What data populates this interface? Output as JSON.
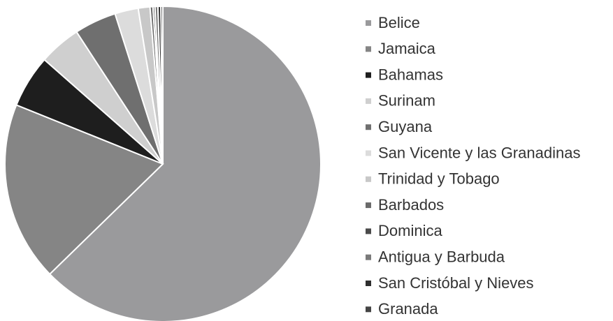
{
  "chart_data": {
    "type": "pie",
    "categories": [
      "Belice",
      "Jamaica",
      "Bahamas",
      "Surinam",
      "Guyana",
      "San Vicente y las Granadinas",
      "Trinidad y Tobago",
      "Barbados",
      "Dominica",
      "Antigua y Barbuda",
      "San Cristóbal y Nieves",
      "Granada"
    ],
    "values": [
      62.7,
      18.4,
      5.4,
      4.3,
      4.3,
      2.4,
      1.2,
      0.3,
      0.2,
      0.3,
      0.3,
      0.2
    ],
    "colors": [
      "#9a9a9c",
      "#858585",
      "#1e1e1e",
      "#cfcfcf",
      "#6f6f6f",
      "#dcdcdc",
      "#c8c8c8",
      "#6a6a6a",
      "#4a4a4a",
      "#7a7a7a",
      "#2e2e2e",
      "#444444"
    ]
  }
}
